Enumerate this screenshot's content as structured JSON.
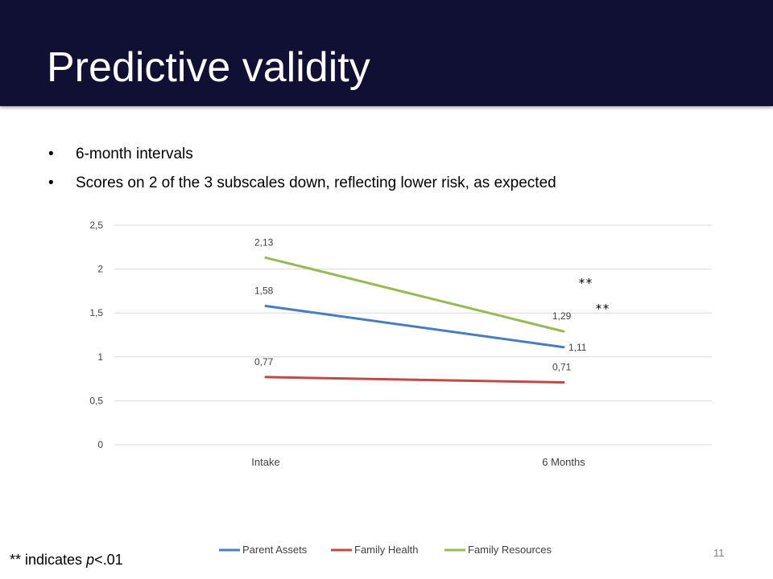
{
  "slide": {
    "title": "Predictive validity",
    "bullets": [
      "6-month intervals",
      "Scores on 2 of the 3 subscales down, reflecting lower risk, as expected"
    ],
    "footnote_prefix": "** indicates ",
    "footnote_p": "p",
    "footnote_suffix": "<.01",
    "page_number": "11"
  },
  "chart_data": {
    "type": "line",
    "categories": [
      "Intake",
      "6 Months"
    ],
    "series": [
      {
        "name": "Parent Assets",
        "color": "#4a7ebb",
        "values": [
          1.58,
          1.11
        ],
        "labels": [
          "1,58",
          "1,11"
        ]
      },
      {
        "name": "Family Health",
        "color": "#be4b48",
        "values": [
          0.77,
          0.71
        ],
        "labels": [
          "0,77",
          "0,71"
        ]
      },
      {
        "name": "Family Resources",
        "color": "#98b954",
        "values": [
          2.13,
          1.29
        ],
        "labels": [
          "2,13",
          "1,29"
        ]
      }
    ],
    "ylim": [
      0,
      2.5
    ],
    "y_ticks": [
      0,
      0.5,
      1,
      1.5,
      2,
      2.5
    ],
    "y_tick_labels": [
      "0",
      "0,5",
      "1",
      "1,5",
      "2",
      "2,5"
    ],
    "grid": true,
    "legend": "bottom",
    "annotations": [
      "**",
      "**"
    ]
  }
}
